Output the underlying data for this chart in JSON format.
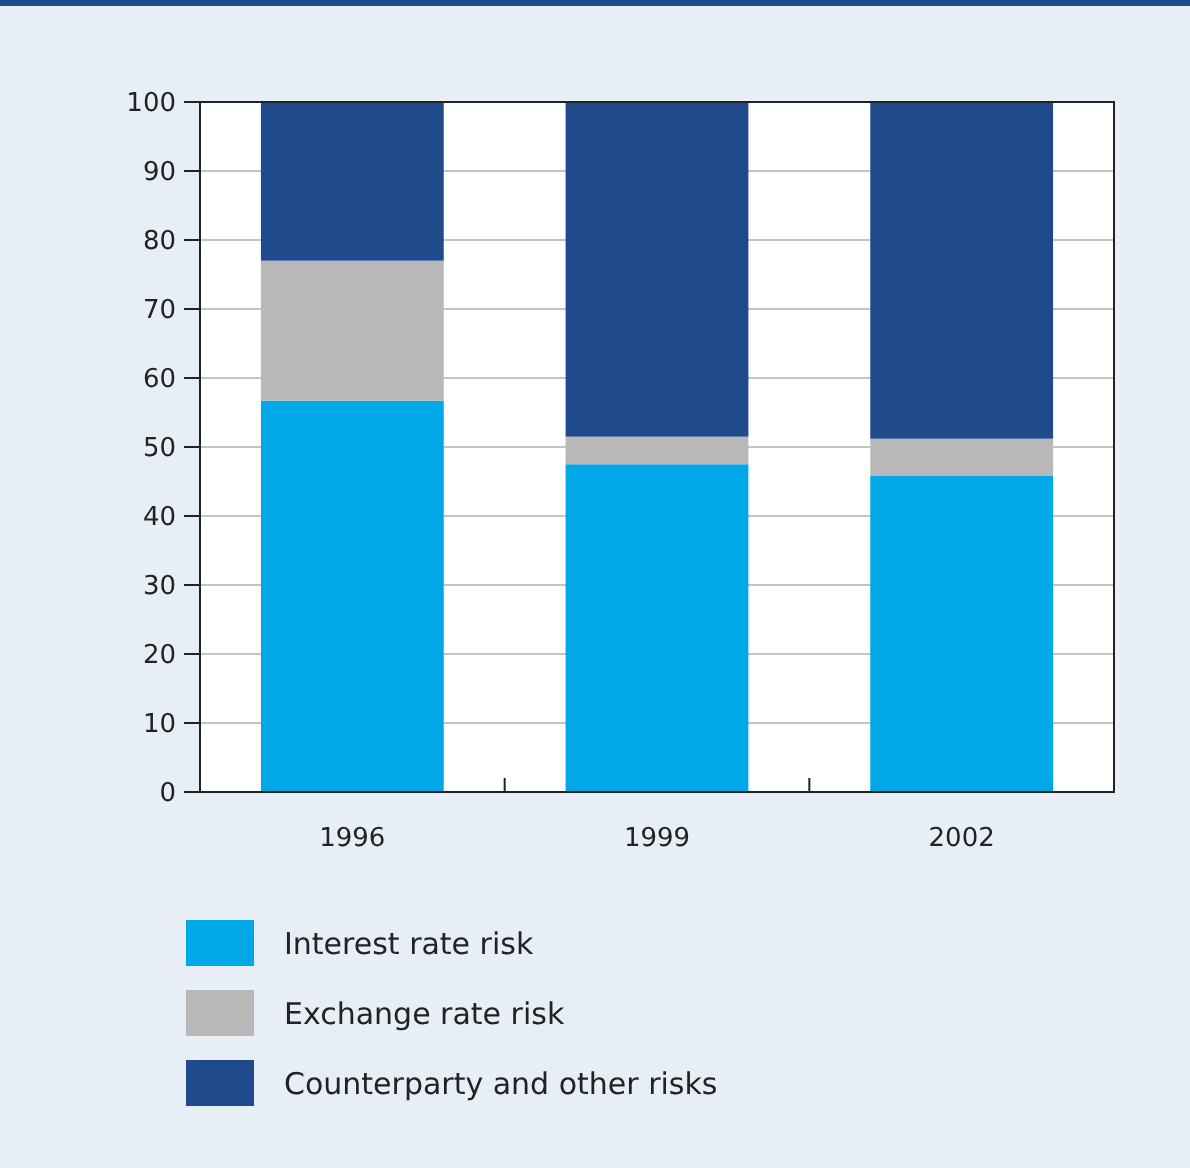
{
  "chart_data": {
    "type": "bar",
    "stacked": true,
    "categories": [
      "1996",
      "1999",
      "2002"
    ],
    "series": [
      {
        "name": "Interest rate risk",
        "color": "#00a8e8",
        "values": [
          56.7,
          47.5,
          45.8
        ]
      },
      {
        "name": "Exchange rate risk",
        "color": "#b8b8b8",
        "values": [
          20.3,
          4,
          5.4
        ]
      },
      {
        "name": "Counterparty and other risks",
        "color": "#1f4a8c",
        "values": [
          23,
          48.5,
          48.8
        ]
      }
    ],
    "ylim": [
      0,
      100
    ],
    "yticks": [
      0,
      10,
      20,
      30,
      40,
      50,
      60,
      70,
      80,
      90,
      100
    ],
    "grid": "y",
    "legend": "bottom"
  }
}
